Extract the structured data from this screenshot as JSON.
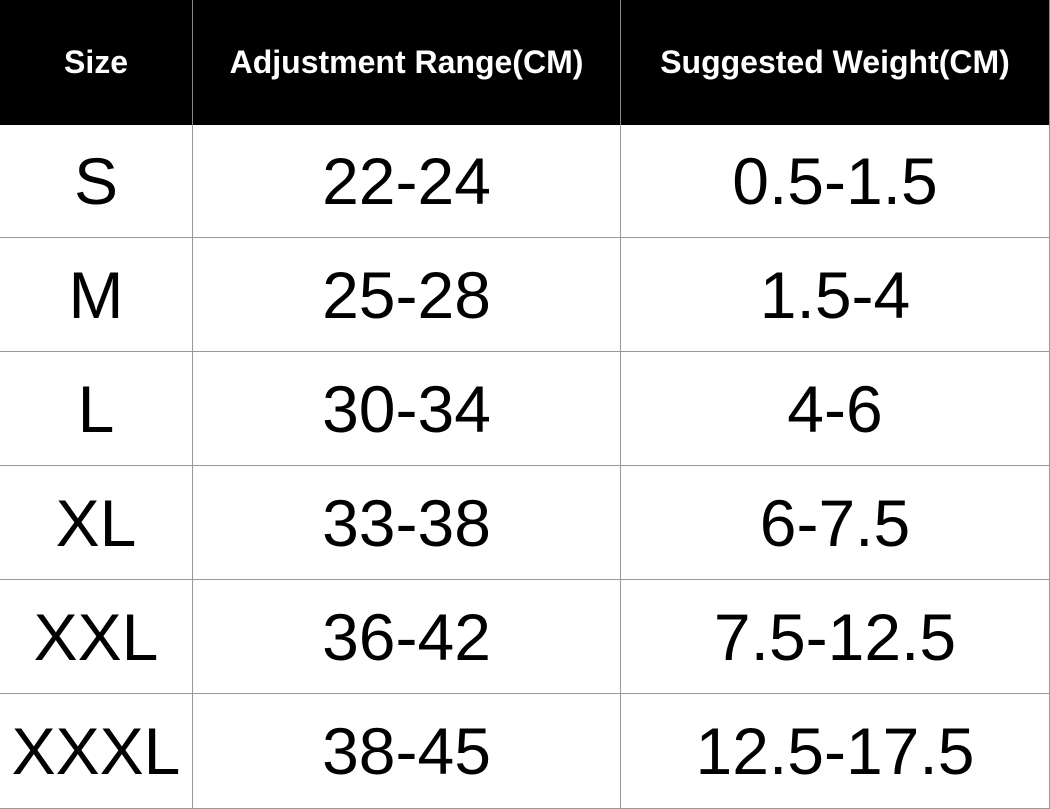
{
  "table": {
    "header": [
      "Size",
      "Adjustment Range(CM)",
      "Suggested Weight(CM)"
    ],
    "rows": [
      [
        "S",
        "22-24",
        "0.5-1.5"
      ],
      [
        "M",
        "25-28",
        "1.5-4"
      ],
      [
        "L",
        "30-34",
        "4-6"
      ],
      [
        "XL",
        "33-38",
        "6-7.5"
      ],
      [
        "XXL",
        "36-42",
        "7.5-12.5"
      ],
      [
        "XXXL",
        "38-45",
        "12.5-17.5"
      ]
    ]
  }
}
